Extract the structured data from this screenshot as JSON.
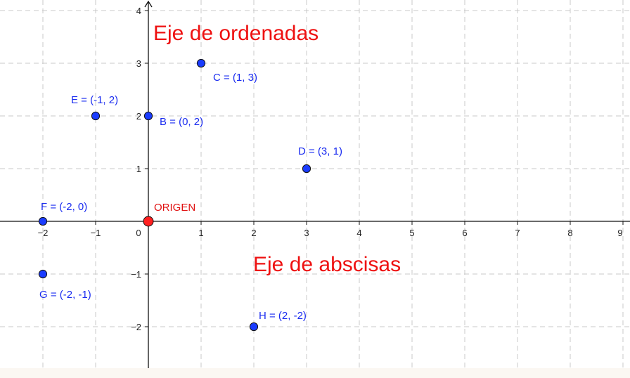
{
  "chart_data": {
    "type": "scatter",
    "xlim": [
      -2.8,
      9.0
    ],
    "ylim": [
      -2.8,
      4.2
    ],
    "grid": true,
    "x_ticks": [
      "−2",
      "−1",
      "0",
      "1",
      "2",
      "3",
      "4",
      "5",
      "6",
      "7",
      "8",
      "9"
    ],
    "y_ticks": [
      "−2",
      "−1",
      "1",
      "2",
      "3",
      "4"
    ],
    "x_tick_values": [
      -2,
      -1,
      0,
      1,
      2,
      3,
      4,
      5,
      6,
      7,
      8,
      9
    ],
    "y_tick_values": [
      -2,
      -1,
      1,
      2,
      3,
      4
    ],
    "points": [
      {
        "id": "origin",
        "x": 0,
        "y": 0,
        "label": "ORIGEN",
        "color": "#ff2020",
        "label_color": "#e01010"
      },
      {
        "id": "B",
        "x": 0,
        "y": 2,
        "label": "B = (0, 2)",
        "color": "#1a3cff",
        "label_color": "#1a2cf0"
      },
      {
        "id": "C",
        "x": 1,
        "y": 3,
        "label": "C = (1, 3)",
        "color": "#1a3cff",
        "label_color": "#1a2cf0"
      },
      {
        "id": "D",
        "x": 3,
        "y": 1,
        "label": "D = (3, 1)",
        "color": "#1a3cff",
        "label_color": "#1a2cf0"
      },
      {
        "id": "E",
        "x": -1,
        "y": 2,
        "label": "E = (-1, 2)",
        "color": "#1a3cff",
        "label_color": "#1a2cf0"
      },
      {
        "id": "F",
        "x": -2,
        "y": 0,
        "label": "F = (-2, 0)",
        "color": "#1a3cff",
        "label_color": "#1a2cf0"
      },
      {
        "id": "G",
        "x": -2,
        "y": -1,
        "label": "G = (-2, -1)",
        "color": "#1a3cff",
        "label_color": "#1a2cf0"
      },
      {
        "id": "H",
        "x": 2,
        "y": -2,
        "label": "H = (2, -2)",
        "color": "#1a3cff",
        "label_color": "#1a2cf0"
      }
    ],
    "annotations": {
      "y_axis_label": "Eje de ordenadas",
      "x_axis_label": "Eje de abscisas",
      "color": "#ee1111"
    }
  }
}
